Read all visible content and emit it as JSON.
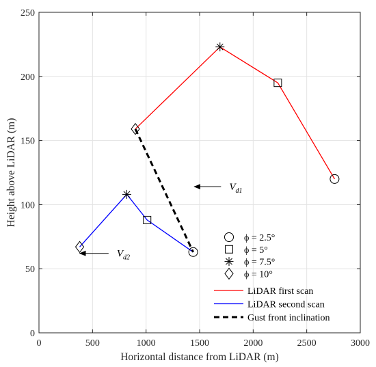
{
  "chart_data": {
    "type": "line",
    "xlabel": "Horizontal distance from LiDAR (m)",
    "ylabel": "Height above LiDAR (m)",
    "xlim": [
      0,
      3000
    ],
    "ylim": [
      0,
      250
    ],
    "xticks": [
      0,
      500,
      1000,
      1500,
      2000,
      2500,
      3000
    ],
    "yticks": [
      0,
      50,
      100,
      150,
      200,
      250
    ],
    "grid": true,
    "legend_position": "lower-right",
    "colors": {
      "first": "#ff0000",
      "second": "#0000ff",
      "gust": "#000000"
    },
    "series": [
      {
        "name": "LiDAR first scan",
        "style": "solid",
        "color": "#ff0000",
        "points": [
          {
            "x": 900,
            "y": 159,
            "marker": "diamond"
          },
          {
            "x": 1690,
            "y": 223,
            "marker": "star"
          },
          {
            "x": 2230,
            "y": 195,
            "marker": "square"
          },
          {
            "x": 2760,
            "y": 120,
            "marker": "circle"
          }
        ]
      },
      {
        "name": "LiDAR second scan",
        "style": "solid",
        "color": "#0000ff",
        "points": [
          {
            "x": 380,
            "y": 67,
            "marker": "diamond"
          },
          {
            "x": 820,
            "y": 108,
            "marker": "star"
          },
          {
            "x": 1010,
            "y": 88,
            "marker": "square"
          },
          {
            "x": 1440,
            "y": 63,
            "marker": "circle"
          }
        ]
      },
      {
        "name": "Gust front inclination",
        "style": "dashed",
        "color": "#000000",
        "points": [
          {
            "x": 900,
            "y": 159
          },
          {
            "x": 1440,
            "y": 63
          }
        ]
      }
    ],
    "marker_legend": [
      {
        "marker": "circle",
        "label": "ϕ = 2.5°"
      },
      {
        "marker": "square",
        "label": "ϕ = 5°"
      },
      {
        "marker": "star",
        "label": "ϕ = 7.5°"
      },
      {
        "marker": "diamond",
        "label": "ϕ = 10°"
      }
    ],
    "annotations": [
      {
        "label": "V",
        "sub": "d1",
        "arrow_from": [
          1700,
          114
        ],
        "arrow_to": [
          1450,
          114
        ]
      },
      {
        "label": "V",
        "sub": "d2",
        "arrow_from": [
          650,
          62
        ],
        "arrow_to": [
          380,
          62
        ]
      }
    ]
  }
}
